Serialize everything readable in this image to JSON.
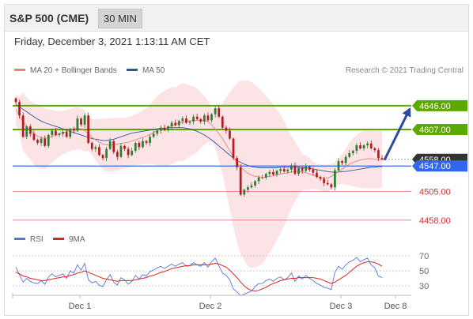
{
  "header": {
    "instrument": "S&P 500 (CME)",
    "timeframe": "30 MIN"
  },
  "datetime": "Friday, December 3, 2021 1:13:11 AM CET",
  "credit": "Research © 2021 Trading Central",
  "legend": {
    "bollinger": {
      "label": "MA 20 + Bollinger Bands",
      "color": "#f08080"
    },
    "ma50": {
      "label": "MA 50",
      "color": "#33559a"
    },
    "rsi": {
      "label": "RSI",
      "color": "#5577dd"
    },
    "rsi_ma": {
      "label": "9MA",
      "color": "#dd2222"
    }
  },
  "colors": {
    "candle_up": "#2e7d32",
    "candle_down": "#b71c1c",
    "resistance": "#5aa800",
    "pivot": "#3366ee",
    "support": "#e57373",
    "last": "#333333",
    "arrow": "#2e4a9c",
    "band_fill": "#fadadd"
  },
  "chart_data": [
    {
      "type": "candlestick",
      "title": "",
      "ylim": [
        4450,
        4690
      ],
      "x_labels": [
        "Dec 1",
        "Dec 2",
        "Dec 3",
        "Dec 8"
      ],
      "levels": [
        {
          "value": 4646.0,
          "label": "4646.00",
          "kind": "resistance"
        },
        {
          "value": 4607.0,
          "label": "4607.00",
          "kind": "resistance"
        },
        {
          "value": 4558.0,
          "label": "4558.00",
          "kind": "last"
        },
        {
          "value": 4547.0,
          "label": "4547.00",
          "kind": "pivot"
        },
        {
          "value": 4505.0,
          "label": "4505.00",
          "kind": "support"
        },
        {
          "value": 4458.0,
          "label": "4458.00",
          "kind": "support"
        }
      ],
      "closes": [
        4652,
        4630,
        4595,
        4612,
        4600,
        4590,
        4585,
        4592,
        4580,
        4598,
        4605,
        4598,
        4600,
        4603,
        4595,
        4608,
        4605,
        4625,
        4615,
        4630,
        4585,
        4575,
        4578,
        4565,
        4560,
        4575,
        4588,
        4570,
        4562,
        4580,
        4575,
        4565,
        4572,
        4585,
        4578,
        4588,
        4585,
        4595,
        4600,
        4605,
        4610,
        4606,
        4612,
        4618,
        4614,
        4621,
        4625,
        4618,
        4620,
        4628,
        4624,
        4620,
        4630,
        4622,
        4632,
        4642,
        4628,
        4610,
        4605,
        4592,
        4560,
        4545,
        4500,
        4508,
        4512,
        4515,
        4522,
        4528,
        4528,
        4534,
        4537,
        4533,
        4539,
        4542,
        4538,
        4541,
        4548,
        4534,
        4544,
        4539,
        4546,
        4541,
        4536,
        4529,
        4526,
        4519,
        4517,
        4512,
        4540,
        4555,
        4552,
        4562,
        4568,
        4572,
        4581,
        4576,
        4581,
        4584,
        4576,
        4573,
        4560,
        4558
      ],
      "ma20": [
        4640,
        4630,
        4620,
        4612,
        4606,
        4600,
        4596,
        4594,
        4592,
        4594,
        4596,
        4598,
        4600,
        4602,
        4604,
        4606,
        4608,
        4609,
        4608,
        4605,
        4600,
        4594,
        4590,
        4586,
        4583,
        4582,
        4581,
        4582,
        4583,
        4584,
        4585,
        4586,
        4588,
        4590,
        4592,
        4594,
        4596,
        4599,
        4602,
        4605,
        4607,
        4609,
        4611,
        4613,
        4615,
        4617,
        4619,
        4620,
        4621,
        4622,
        4622,
        4622,
        4622,
        4620,
        4615,
        4608,
        4600,
        4592,
        4582,
        4572,
        4562,
        4552,
        4545,
        4540,
        4535,
        4532,
        4530,
        4529,
        4528,
        4529,
        4530,
        4531,
        4533,
        4534,
        4535,
        4536,
        4537,
        4538,
        4538,
        4537,
        4536,
        4534,
        4532,
        4530,
        4528,
        4527,
        4527,
        4530,
        4534,
        4538,
        4542,
        4546,
        4550,
        4553,
        4555,
        4557,
        4558,
        4559,
        4559,
        4558,
        4558,
        4558
      ],
      "ma50": [
        4648,
        4644,
        4640,
        4636,
        4632,
        4628,
        4624,
        4621,
        4618,
        4616,
        4614,
        4612,
        4610,
        4608,
        4606,
        4604,
        4602,
        4600,
        4598,
        4596,
        4594,
        4592,
        4591,
        4590,
        4589,
        4589,
        4590,
        4591,
        4593,
        4595,
        4597,
        4599,
        4601,
        4602,
        4603,
        4604,
        4605,
        4606,
        4607,
        4608,
        4609,
        4609,
        4610,
        4610,
        4610,
        4610,
        4610,
        4609,
        4608,
        4606,
        4604,
        4601,
        4598,
        4594,
        4590,
        4585,
        4580,
        4575,
        4570,
        4565,
        4560,
        4556,
        4553,
        4550,
        4548,
        4546,
        4545,
        4544,
        4544,
        4544,
        4544,
        4544,
        4544,
        4545,
        4545,
        4545,
        4545,
        4545,
        4545,
        4544,
        4544,
        4543,
        4542,
        4541,
        4540,
        4539,
        4538,
        4537,
        4537,
        4537,
        4538,
        4538,
        4539,
        4540,
        4541,
        4542,
        4543,
        4544,
        4545,
        4545,
        4546,
        4546
      ]
    },
    {
      "type": "line",
      "title": "",
      "ylim": [
        15,
        85
      ],
      "y_ticks": [
        70,
        50,
        30
      ],
      "series": [
        {
          "name": "RSI",
          "values": [
            55,
            45,
            35,
            40,
            36,
            34,
            33,
            37,
            32,
            42,
            46,
            42,
            44,
            46,
            40,
            50,
            47,
            58,
            51,
            60,
            38,
            34,
            36,
            31,
            29,
            38,
            45,
            35,
            31,
            41,
            38,
            32,
            36,
            44,
            39,
            45,
            43,
            49,
            51,
            54,
            56,
            53,
            56,
            59,
            56,
            59,
            61,
            56,
            57,
            61,
            58,
            56,
            61,
            55,
            62,
            67,
            57,
            47,
            44,
            38,
            26,
            22,
            17,
            19,
            21,
            23,
            29,
            33,
            33,
            37,
            39,
            36,
            40,
            42,
            38,
            41,
            47,
            36,
            43,
            39,
            44,
            40,
            37,
            33,
            31,
            28,
            27,
            25,
            48,
            56,
            52,
            58,
            62,
            64,
            68,
            62,
            65,
            67,
            58,
            54,
            43,
            41
          ]
        },
        {
          "name": "9MA",
          "values": [
            48,
            46,
            43,
            42,
            40,
            39,
            38,
            37,
            37,
            38,
            39,
            40,
            41,
            42,
            42,
            44,
            45,
            47,
            48,
            50,
            48,
            46,
            44,
            42,
            40,
            39,
            38,
            37,
            36,
            37,
            37,
            37,
            37,
            38,
            39,
            40,
            41,
            43,
            44,
            46,
            48,
            49,
            51,
            53,
            54,
            55,
            56,
            57,
            57,
            58,
            58,
            58,
            58,
            58,
            59,
            60,
            59,
            57,
            55,
            51,
            46,
            41,
            35,
            30,
            26,
            24,
            23,
            24,
            26,
            28,
            31,
            33,
            35,
            37,
            38,
            39,
            40,
            40,
            41,
            41,
            41,
            41,
            41,
            40,
            39,
            37,
            35,
            33,
            35,
            38,
            41,
            44,
            48,
            52,
            56,
            59,
            61,
            62,
            62,
            61,
            59,
            56
          ]
        }
      ]
    }
  ]
}
